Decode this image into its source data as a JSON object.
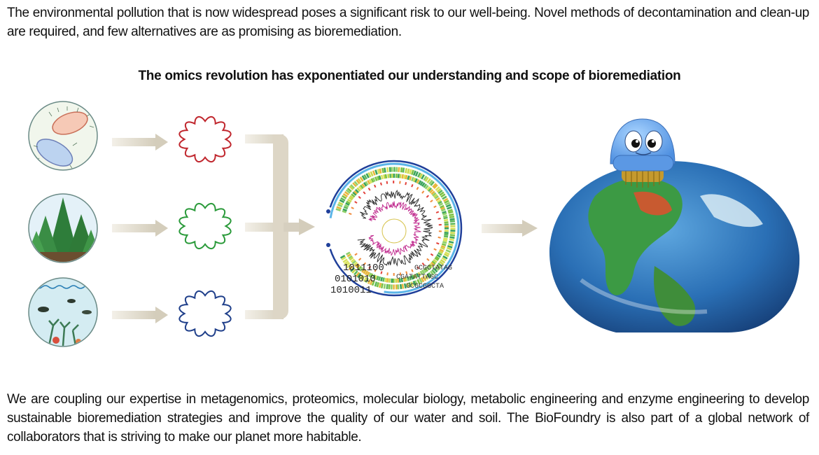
{
  "text": {
    "intro": "The environmental pollution that is now widespread poses a significant risk to our well-being. Novel methods of decontamination and clean-up are required, and few alternatives are as promising as bioremediation.",
    "heading": "The omics revolution has exponentiated our understanding and scope of bioremediation",
    "outro": "We are coupling our expertise in metagenomics, proteomics, molecular biology, metabolic engineering and enzyme engineering to develop sustainable bioremediation strategies and improve the quality of our water and soil. The BioFoundry is also part of a global network of collaborators that is striving to make our planet more habitable."
  },
  "diagram": {
    "sources": [
      {
        "name": "microbes",
        "icon": "bacteria-icon"
      },
      {
        "name": "forest",
        "icon": "forest-icon"
      },
      {
        "name": "ocean",
        "icon": "marine-icon"
      }
    ],
    "plasmid_colors": [
      "#c0262d",
      "#2a9a3a",
      "#1f3f8a"
    ],
    "arrow_color": "#d9d3c4",
    "sequence_text": [
      "GCGCTATAG",
      "CGATATTAGC",
      "GCGCGGCTA"
    ],
    "binary_text": [
      "1011100",
      "0101010",
      "1010011"
    ]
  }
}
